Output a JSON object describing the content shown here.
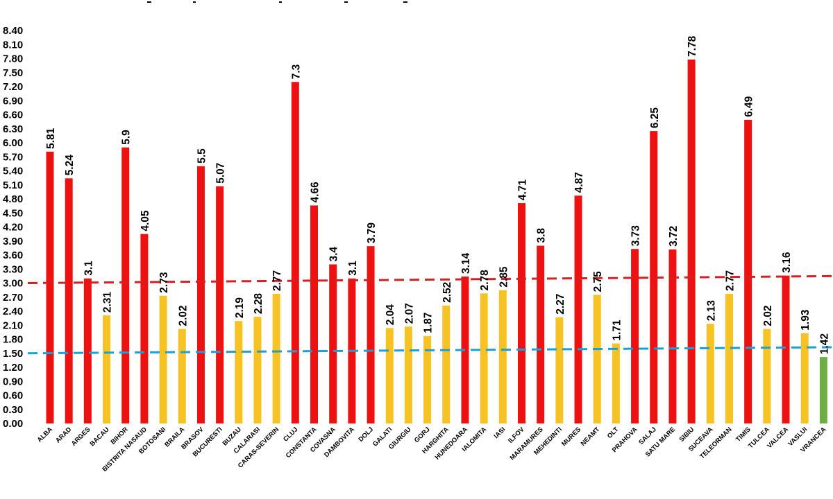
{
  "chart_data": {
    "type": "bar",
    "title": "",
    "xlabel": "",
    "ylabel": "",
    "ylim": [
      0,
      8.4
    ],
    "yticks": [
      "0.00",
      "0.30",
      "0.60",
      "0.90",
      "1.20",
      "1.50",
      "1.80",
      "2.10",
      "2.40",
      "2.70",
      "3.00",
      "3.30",
      "3.60",
      "3.90",
      "4.20",
      "4.50",
      "4.80",
      "5.10",
      "5.40",
      "5.70",
      "6.00",
      "6.30",
      "6.60",
      "6.90",
      "7.20",
      "7.50",
      "7.80",
      "8.10",
      "8.40"
    ],
    "grid": false,
    "categories": [
      "ALBA",
      "ARAD",
      "ARGES",
      "BACAU",
      "BIHOR",
      "BISTRITA NASAUD",
      "BOTOSANI",
      "BRAILA",
      "BRASOV",
      "BUCURESTI",
      "BUZAU",
      "CALARASI",
      "CARAS-SEVERIN",
      "CLUJ",
      "CONSTANTA",
      "COVASNA",
      "DAMBOVITA",
      "DOLJ",
      "GALATI",
      "GIURGIU",
      "GORJ",
      "HARGHITA",
      "HUNEDOARA",
      "IALOMITA",
      "IASI",
      "ILFOV",
      "MARAMURES",
      "MEHEDINTI",
      "MURES",
      "NEAMT",
      "OLT",
      "PRAHOVA",
      "SALAJ",
      "SATU MARE",
      "SIBIU",
      "SUCEAVA",
      "TELEORMAN",
      "TIMIS",
      "TULCEA",
      "VALCEA",
      "VASLUI",
      "VRANCEA"
    ],
    "values": [
      5.81,
      5.24,
      3.1,
      2.31,
      5.9,
      4.05,
      2.73,
      2.02,
      5.5,
      5.07,
      2.19,
      2.28,
      2.77,
      7.3,
      4.66,
      3.4,
      3.1,
      3.79,
      2.04,
      2.07,
      1.87,
      2.52,
      3.14,
      2.78,
      2.85,
      4.71,
      3.8,
      2.27,
      4.87,
      2.75,
      1.71,
      3.73,
      6.25,
      3.72,
      7.78,
      2.13,
      2.77,
      6.49,
      2.02,
      3.16,
      1.93,
      1.42
    ],
    "value_labels": [
      "5.81",
      "5.24",
      "3.1",
      "2.31",
      "5.9",
      "4.05",
      "2.73",
      "2.02",
      "5.5",
      "5.07",
      "2.19",
      "2.28",
      "2.77",
      "7.3",
      "4.66",
      "3.4",
      "3.1",
      "3.79",
      "2.04",
      "2.07",
      "1.87",
      "2.52",
      "3.14",
      "2.78",
      "2.85",
      "4.71",
      "3.8",
      "2.27",
      "4.87",
      "2.75",
      "1.71",
      "3.73",
      "6.25",
      "3.72",
      "7.78",
      "2.13",
      "2.77",
      "6.49",
      "2.02",
      "3.16",
      "1.93",
      "1.42"
    ],
    "thresholds": [
      {
        "name": "red-threshold",
        "start": 3.0,
        "end": 3.15,
        "color": "#d42020"
      },
      {
        "name": "blue-threshold",
        "start": 1.5,
        "end": 1.63,
        "color": "#1aa0d8"
      }
    ],
    "colors": {
      "high": "#ee1111",
      "medium": "#f7c223",
      "low": "#70ad47"
    }
  }
}
